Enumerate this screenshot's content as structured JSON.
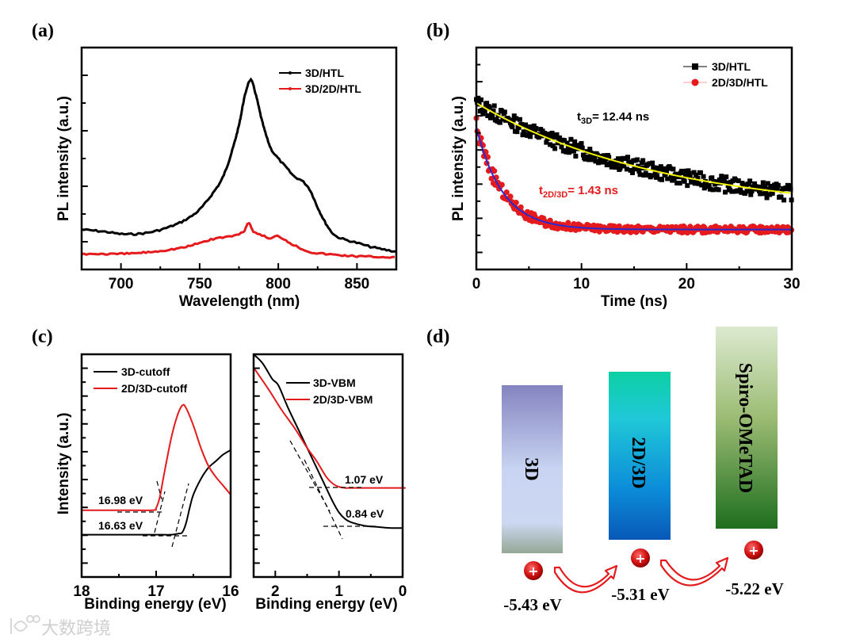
{
  "chart_data": [
    {
      "panel": "(a)",
      "type": "line",
      "xlabel": "Wavelength (nm)",
      "ylabel": "PL intensity (a.u.)",
      "xlim": [
        675,
        875
      ],
      "ylim": [
        0,
        1
      ],
      "xticks": [
        "700",
        "750",
        "800",
        "850"
      ],
      "legend_position": "top-right",
      "series": [
        {
          "name": "3D/HTL",
          "color": "#000000",
          "x": [
            675,
            690,
            700,
            710,
            720,
            730,
            740,
            750,
            760,
            765,
            770,
            775,
            778,
            781,
            783,
            786,
            790,
            795,
            800,
            805,
            810,
            815,
            820,
            825,
            830,
            835,
            840,
            850,
            860,
            875
          ],
          "y": [
            0.18,
            0.17,
            0.16,
            0.16,
            0.17,
            0.19,
            0.22,
            0.27,
            0.36,
            0.42,
            0.52,
            0.65,
            0.76,
            0.84,
            0.85,
            0.78,
            0.66,
            0.55,
            0.5,
            0.46,
            0.42,
            0.4,
            0.36,
            0.28,
            0.21,
            0.16,
            0.14,
            0.12,
            0.1,
            0.08
          ]
        },
        {
          "name": "3D/2D/HTL",
          "color": "#e41a1c",
          "x": [
            675,
            690,
            700,
            720,
            740,
            750,
            760,
            770,
            775,
            778,
            781,
            784,
            788,
            795,
            800,
            810,
            820,
            830,
            850,
            875
          ],
          "y": [
            0.07,
            0.07,
            0.07,
            0.08,
            0.1,
            0.12,
            0.14,
            0.15,
            0.16,
            0.17,
            0.21,
            0.17,
            0.16,
            0.14,
            0.15,
            0.11,
            0.08,
            0.07,
            0.06,
            0.055
          ]
        }
      ]
    },
    {
      "panel": "(b)",
      "type": "scatter",
      "xlabel": "Time (ns)",
      "ylabel": "PL intensity (a.u.)",
      "xlim": [
        0,
        30
      ],
      "ylim": [
        0,
        1
      ],
      "xticks": [
        "0",
        "10",
        "20",
        "30"
      ],
      "legend_position": "top-right",
      "series": [
        {
          "name": "3D/HTL",
          "color": "#000000",
          "marker": "square",
          "fit_color": "#f2f200",
          "decay_model": {
            "amplitude": 0.5,
            "offset": 0.25,
            "tau": 17.9,
            "noise": 0.035
          }
        },
        {
          "name": "2D/3D/HTL",
          "color": "#e41a1c",
          "marker": "circle",
          "fit_color": "#2a2ad0",
          "decay_model": {
            "amplitude": 0.46,
            "offset": 0.18,
            "tau": 2.5,
            "noise": 0.015
          }
        }
      ],
      "annotations": [
        {
          "prefix": "t",
          "sub": "3D",
          "text": "= 12.44 ns",
          "color": "#000000"
        },
        {
          "prefix": "t",
          "sub": "2D/3D",
          "text": "= 1.43 ns",
          "color": "#e41a1c"
        }
      ]
    },
    {
      "panel": "(c-left)",
      "type": "line",
      "xlabel": "Binding energy (eV)",
      "ylabel": "Intensity (a.u.)",
      "xlim": [
        18,
        16
      ],
      "ylim": [
        0,
        1
      ],
      "xticks": [
        "18",
        "17",
        "16"
      ],
      "legend_position": "top-left",
      "series": [
        {
          "name": "3D-cutoff",
          "color": "#000000",
          "x": [
            18,
            17.5,
            17,
            16.8,
            16.7,
            16.65,
            16.6,
            16.55,
            16.5,
            16.4,
            16.3,
            16.2,
            16.1,
            16.0
          ],
          "y": [
            0.19,
            0.19,
            0.19,
            0.19,
            0.195,
            0.2,
            0.24,
            0.31,
            0.37,
            0.44,
            0.49,
            0.52,
            0.55,
            0.57
          ]
        },
        {
          "name": "2D/3D-cutoff",
          "color": "#e41a1c",
          "x": [
            18,
            17.5,
            17.05,
            17.0,
            16.95,
            16.9,
            16.8,
            16.72,
            16.65,
            16.6,
            16.5,
            16.4,
            16.3,
            16.2,
            16.1,
            16.0
          ],
          "y": [
            0.3,
            0.3,
            0.3,
            0.31,
            0.36,
            0.45,
            0.62,
            0.72,
            0.77,
            0.76,
            0.68,
            0.58,
            0.5,
            0.45,
            0.41,
            0.37
          ]
        }
      ],
      "annotations": [
        "16.98 eV",
        "16.63 eV"
      ]
    },
    {
      "panel": "(c-right)",
      "type": "line",
      "xlabel": "Binding energy (eV)",
      "ylabel": "",
      "xlim": [
        2.34,
        0
      ],
      "ylim": [
        0,
        1
      ],
      "xticks": [
        "2",
        "1",
        "0"
      ],
      "legend_position": "top-right",
      "series": [
        {
          "name": "3D-VBM",
          "color": "#000000",
          "x": [
            2.34,
            2.2,
            2.05,
            1.95,
            1.8,
            1.6,
            1.4,
            1.25,
            1.1,
            1.0,
            0.9,
            0.8,
            0.6,
            0.4,
            0.2,
            0
          ],
          "y": [
            1.0,
            0.96,
            0.89,
            0.86,
            0.76,
            0.64,
            0.52,
            0.43,
            0.34,
            0.29,
            0.26,
            0.245,
            0.23,
            0.225,
            0.22,
            0.22
          ]
        },
        {
          "name": "2D/3D-VBM",
          "color": "#e41a1c",
          "x": [
            2.34,
            2.1,
            1.9,
            1.7,
            1.5,
            1.35,
            1.2,
            1.1,
            1.0,
            0.9,
            0.8,
            0.5,
            0,
            0
          ],
          "y": [
            0.94,
            0.84,
            0.75,
            0.67,
            0.58,
            0.52,
            0.45,
            0.42,
            0.405,
            0.4,
            0.4,
            0.4,
            0.4,
            0.4
          ]
        }
      ],
      "annotations": [
        "1.07 eV",
        "0.84 eV"
      ]
    },
    {
      "panel": "(d)",
      "type": "diagram",
      "layers": [
        {
          "name": "3D",
          "energy": "-5.43 eV",
          "value": -5.43
        },
        {
          "name": "2D/3D",
          "energy": "-5.31 eV",
          "value": -5.31
        },
        {
          "name": "Spiro-OMeTAD",
          "energy": "-5.22 eV",
          "value": -5.22
        }
      ],
      "charge_symbol": "+"
    }
  ],
  "labels": {
    "a": "(a)",
    "b": "(b)",
    "c": "(c)",
    "d": "(d)"
  },
  "watermark": "大数跨境"
}
